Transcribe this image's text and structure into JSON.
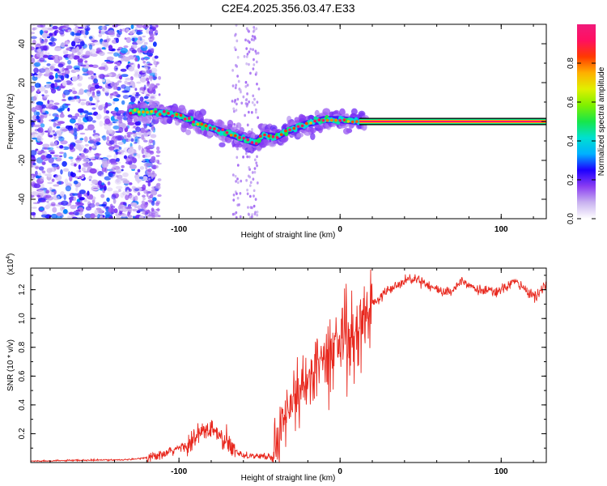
{
  "title": "C2E4.2025.356.03.47.E33",
  "chart_data": [
    {
      "type": "heatmap",
      "xlabel": "Height of straight line (km)",
      "ylabel": "Frequency (Hz)",
      "xlim": [
        -192,
        128
      ],
      "ylim": [
        -50,
        50
      ],
      "xticks": [
        -100,
        0,
        100
      ],
      "yticks": [
        -40,
        -20,
        0,
        20,
        40
      ],
      "grid": false,
      "colorbar": {
        "label": "Normalized spectral amplitude",
        "range": [
          0,
          1
        ],
        "ticks": [
          "0.0",
          "0.2",
          "0.4",
          "0.6",
          "0.8"
        ],
        "colors": [
          "#ffffff",
          "#c9b3f0",
          "#8a3cf2",
          "#1d00ff",
          "#00b0ff",
          "#00e0d0",
          "#17e64a",
          "#7ff000",
          "#e0f000",
          "#ffb000",
          "#ff3a00",
          "#ff1060",
          "#f01a7a"
        ]
      },
      "ridge": {
        "description_points": [
          {
            "x": -128,
            "y": 5
          },
          {
            "x": -115,
            "y": 5
          },
          {
            "x": -100,
            "y": 3
          },
          {
            "x": -85,
            "y": -2
          },
          {
            "x": -70,
            "y": -6
          },
          {
            "x": -60,
            "y": -9
          },
          {
            "x": -52,
            "y": -11
          },
          {
            "x": -48,
            "y": -7
          },
          {
            "x": -40,
            "y": -8
          },
          {
            "x": -30,
            "y": -4
          },
          {
            "x": -20,
            "y": -1
          },
          {
            "x": -10,
            "y": 1
          },
          {
            "x": 0,
            "y": 1
          },
          {
            "x": 12,
            "y": 0
          },
          {
            "x": 128,
            "y": 0
          }
        ],
        "constant_band_from_x": 12,
        "constant_band_freq": 0
      },
      "noise_region_x": [
        -192,
        -120
      ]
    },
    {
      "type": "line",
      "xlabel": "Height of straight line (km)",
      "ylabel": "SNR (10 * v/v)",
      "y_multiplier": "(x10",
      "y_multiplier_exp": "4",
      "y_multiplier_close": ")",
      "xlim": [
        -192,
        128
      ],
      "ylim": [
        0,
        1.35
      ],
      "xticks": [
        -100,
        0,
        100
      ],
      "yticks": [
        0.2,
        0.4,
        0.6,
        0.8,
        1.0,
        1.2
      ],
      "series": [
        {
          "color": "#e8281e",
          "anchors": [
            {
              "x": -192,
              "y": 0.01
            },
            {
              "x": -130,
              "y": 0.02
            },
            {
              "x": -110,
              "y": 0.05
            },
            {
              "x": -100,
              "y": 0.1
            },
            {
              "x": -92,
              "y": 0.14
            },
            {
              "x": -85,
              "y": 0.22
            },
            {
              "x": -78,
              "y": 0.22
            },
            {
              "x": -70,
              "y": 0.12
            },
            {
              "x": -60,
              "y": 0.05
            },
            {
              "x": -45,
              "y": 0.04
            },
            {
              "x": -41,
              "y": 0.04
            },
            {
              "x": -38,
              "y": 0.2
            },
            {
              "x": -32,
              "y": 0.4
            },
            {
              "x": -25,
              "y": 0.5
            },
            {
              "x": -18,
              "y": 0.58
            },
            {
              "x": -12,
              "y": 0.7
            },
            {
              "x": -6,
              "y": 0.82
            },
            {
              "x": 0,
              "y": 0.85
            },
            {
              "x": 6,
              "y": 0.9
            },
            {
              "x": 14,
              "y": 0.98
            },
            {
              "x": 20,
              "y": 1.1
            },
            {
              "x": 30,
              "y": 1.2
            },
            {
              "x": 40,
              "y": 1.27
            },
            {
              "x": 48,
              "y": 1.28
            },
            {
              "x": 60,
              "y": 1.2
            },
            {
              "x": 68,
              "y": 1.18
            },
            {
              "x": 76,
              "y": 1.27
            },
            {
              "x": 85,
              "y": 1.2
            },
            {
              "x": 98,
              "y": 1.18
            },
            {
              "x": 108,
              "y": 1.26
            },
            {
              "x": 115,
              "y": 1.2
            },
            {
              "x": 122,
              "y": 1.15
            },
            {
              "x": 128,
              "y": 1.24
            }
          ]
        }
      ]
    }
  ]
}
